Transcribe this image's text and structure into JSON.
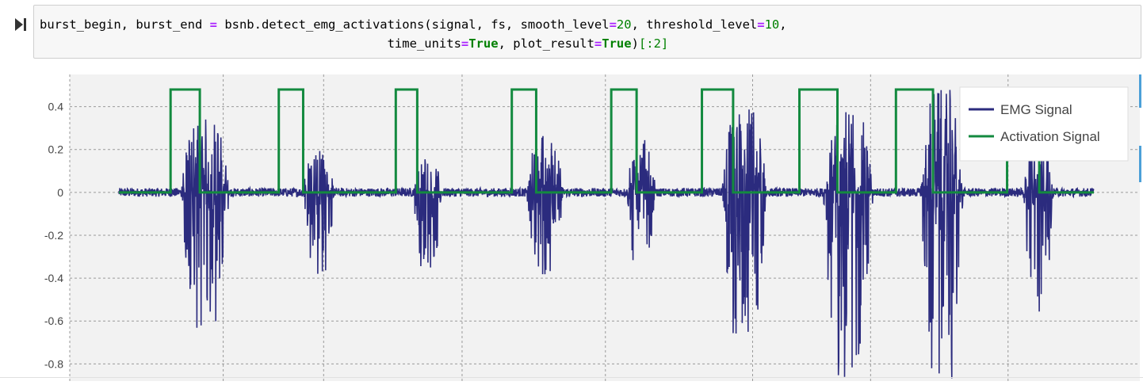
{
  "cell": {
    "code_line1": [
      {
        "t": "burst_begin, burst_end ",
        "c": ""
      },
      {
        "t": "=",
        "c": "op"
      },
      {
        "t": " bsnb.detect_emg_activations(signal, fs, smooth_level",
        "c": ""
      },
      {
        "t": "=",
        "c": "op"
      },
      {
        "t": "20",
        "c": "num"
      },
      {
        "t": ", threshold_level",
        "c": ""
      },
      {
        "t": "=",
        "c": "op"
      },
      {
        "t": "10",
        "c": "num"
      },
      {
        "t": ",",
        "c": ""
      }
    ],
    "code_line2": [
      {
        "t": "                                               time_units",
        "c": ""
      },
      {
        "t": "=",
        "c": "op"
      },
      {
        "t": "True",
        "c": "kw"
      },
      {
        "t": ", plot_result",
        "c": ""
      },
      {
        "t": "=",
        "c": "op"
      },
      {
        "t": "True",
        "c": "kw"
      },
      {
        "t": ")",
        "c": ""
      },
      {
        "t": "[:2]",
        "c": "num"
      }
    ]
  },
  "chart_data": {
    "type": "line",
    "ylim": [
      -0.88,
      0.55
    ],
    "yticks": [
      "0.4",
      "0.2",
      "0",
      "-0.2",
      "-0.4",
      "-0.6",
      "-0.8"
    ],
    "ytick_values": [
      0.4,
      0.2,
      0,
      -0.2,
      -0.4,
      -0.6,
      -0.8
    ],
    "grid": true,
    "legend_position": "top-right",
    "series": [
      {
        "name": "EMG Signal",
        "color": "#2b2b7e",
        "bursts": [
          {
            "start": 0.063,
            "end": 0.114,
            "peak_pos": 0.35,
            "peak_neg": -0.64
          },
          {
            "start": 0.188,
            "end": 0.221,
            "peak_pos": 0.2,
            "peak_neg": -0.41
          },
          {
            "start": 0.302,
            "end": 0.331,
            "peak_pos": 0.18,
            "peak_neg": -0.39
          },
          {
            "start": 0.418,
            "end": 0.456,
            "peak_pos": 0.28,
            "peak_neg": -0.4
          },
          {
            "start": 0.521,
            "end": 0.551,
            "peak_pos": 0.25,
            "peak_neg": -0.38
          },
          {
            "start": 0.618,
            "end": 0.665,
            "peak_pos": 0.4,
            "peak_neg": -0.69
          },
          {
            "start": 0.722,
            "end": 0.774,
            "peak_pos": 0.41,
            "peak_neg": -0.89
          },
          {
            "start": 0.822,
            "end": 0.866,
            "peak_pos": 0.48,
            "peak_neg": -0.88
          },
          {
            "start": 0.928,
            "end": 0.958,
            "peak_pos": 0.3,
            "peak_neg": -0.58
          }
        ]
      },
      {
        "name": "Activation Signal",
        "color": "#138a3f",
        "high_value": 0.48,
        "low_value": 0,
        "intervals": [
          [
            0.053,
            0.083
          ],
          [
            0.164,
            0.189
          ],
          [
            0.284,
            0.306
          ],
          [
            0.403,
            0.428
          ],
          [
            0.505,
            0.531
          ],
          [
            0.598,
            0.63
          ],
          [
            0.698,
            0.737
          ],
          [
            0.797,
            0.835
          ],
          [
            0.911,
            0.944
          ]
        ]
      }
    ]
  }
}
